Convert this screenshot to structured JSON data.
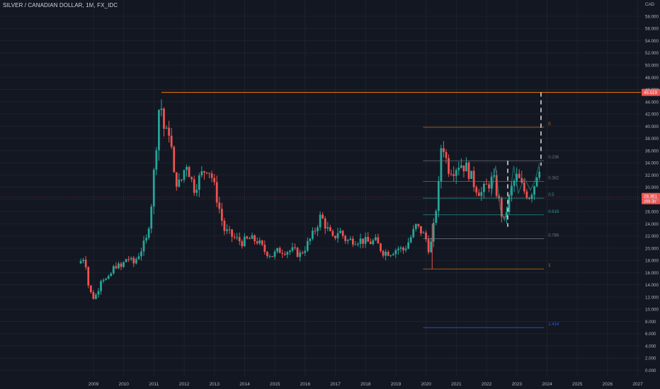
{
  "header": {
    "title": "SILVER / CANADIAN DOLLAR, 1M, FX_IDC"
  },
  "colors": {
    "background": "#131722",
    "up": "#26a69a",
    "down": "#ef5350",
    "grid": "#1e222d",
    "resistance_line": "#f57c00",
    "price_badge": "#ef5350",
    "fib_line": "#787b86",
    "fib_text": "#9598a1"
  },
  "chart_data": {
    "type": "candlestick",
    "currency_label": "CAD",
    "x_axis": {
      "years": [
        "2009",
        "2010",
        "2011",
        "2012",
        "2013",
        "2014",
        "2015",
        "2016",
        "2017",
        "2018",
        "2019",
        "2020",
        "2021",
        "2022",
        "2023",
        "2024",
        "2025",
        "2026",
        "2027"
      ],
      "range": [
        2008.5,
        2027.3
      ]
    },
    "y_axis": {
      "ticks": [
        "0.000",
        "2.000",
        "4.000",
        "6.000",
        "8.000",
        "10.000",
        "12.000",
        "14.000",
        "16.000",
        "18.000",
        "20.000",
        "22.000",
        "24.000",
        "26.000",
        "28.000",
        "30.000",
        "32.000",
        "34.000",
        "36.000",
        "38.000",
        "40.000",
        "42.000",
        "44.000",
        "46.000",
        "48.000",
        "50.000",
        "52.000",
        "54.000",
        "56.000",
        "58.000"
      ],
      "range": [
        -1.2,
        60
      ],
      "grid": true
    },
    "resistance": {
      "value": 45.519,
      "label": "45.519",
      "from_x": 2011.25
    },
    "current_price": {
      "value": 28.361,
      "label": "28.361",
      "countdown": "20d 3h"
    },
    "target_dashed_x": 2023.8,
    "target_dashed_range": [
      33.5,
      45.519
    ],
    "anchor_dashed_x": 2022.7,
    "anchor_dashed_range": [
      23.5,
      34.3
    ],
    "fib": {
      "x_start": 2019.9,
      "x_end": 2023.9,
      "high": 39.8,
      "low": 16.6,
      "levels": [
        {
          "label": "0",
          "value": 39.8,
          "color": "#f57c00"
        },
        {
          "label": "0.236",
          "value": 34.33,
          "color": "#787b86"
        },
        {
          "label": "0.382",
          "value": 30.94,
          "color": "#787b86"
        },
        {
          "label": "0.5",
          "value": 28.2,
          "color": "#26a69a"
        },
        {
          "label": "0.618",
          "value": 25.46,
          "color": "#26a69a"
        },
        {
          "label": "0.786",
          "value": 21.56,
          "color": "#787b86"
        },
        {
          "label": "1",
          "value": 16.6,
          "color": "#f57c00"
        },
        {
          "label": "1.414",
          "value": 6.99,
          "color": "#2962ff"
        }
      ]
    },
    "series_anchors": [
      [
        2008.6,
        17.5
      ],
      [
        2008.8,
        18.8
      ],
      [
        2008.9,
        14.2
      ],
      [
        2009.05,
        11.8
      ],
      [
        2009.2,
        12.5
      ],
      [
        2009.35,
        15.4
      ],
      [
        2009.55,
        14.6
      ],
      [
        2009.8,
        17.3
      ],
      [
        2010.0,
        16.8
      ],
      [
        2010.2,
        18.6
      ],
      [
        2010.4,
        17.4
      ],
      [
        2010.6,
        19.2
      ],
      [
        2010.85,
        21.5
      ],
      [
        2011.0,
        27.5
      ],
      [
        2011.15,
        36.5
      ],
      [
        2011.28,
        45.0
      ],
      [
        2011.45,
        38.2
      ],
      [
        2011.6,
        39.6
      ],
      [
        2011.75,
        31.5
      ],
      [
        2011.95,
        30.3
      ],
      [
        2012.15,
        34.2
      ],
      [
        2012.4,
        29.8
      ],
      [
        2012.65,
        32.0
      ],
      [
        2012.85,
        33.5
      ],
      [
        2013.0,
        31.6
      ],
      [
        2013.2,
        27.5
      ],
      [
        2013.4,
        23.0
      ],
      [
        2013.6,
        22.2
      ],
      [
        2013.8,
        21.5
      ],
      [
        2014.0,
        21.0
      ],
      [
        2014.25,
        21.5
      ],
      [
        2014.5,
        21.2
      ],
      [
        2014.75,
        19.5
      ],
      [
        2015.0,
        18.8
      ],
      [
        2015.2,
        19.6
      ],
      [
        2015.45,
        19.6
      ],
      [
        2015.7,
        19.6
      ],
      [
        2015.9,
        18.9
      ],
      [
        2016.1,
        20.2
      ],
      [
        2016.35,
        22.3
      ],
      [
        2016.6,
        25.3
      ],
      [
        2016.8,
        23.3
      ],
      [
        2017.0,
        21.4
      ],
      [
        2017.2,
        23.0
      ],
      [
        2017.45,
        21.2
      ],
      [
        2017.7,
        21.4
      ],
      [
        2017.95,
        21.3
      ],
      [
        2018.2,
        20.9
      ],
      [
        2018.4,
        21.2
      ],
      [
        2018.65,
        19.4
      ],
      [
        2018.9,
        19.3
      ],
      [
        2019.15,
        20.0
      ],
      [
        2019.35,
        19.7
      ],
      [
        2019.55,
        21.5
      ],
      [
        2019.75,
        23.6
      ],
      [
        2019.95,
        22.6
      ],
      [
        2020.1,
        21.3
      ],
      [
        2020.2,
        19.3
      ],
      [
        2020.35,
        24.0
      ],
      [
        2020.5,
        30.2
      ],
      [
        2020.6,
        38.2
      ],
      [
        2020.8,
        33.2
      ],
      [
        2021.0,
        33.0
      ],
      [
        2021.2,
        34.0
      ],
      [
        2021.45,
        33.0
      ],
      [
        2021.7,
        30.2
      ],
      [
        2021.9,
        29.0
      ],
      [
        2022.1,
        30.2
      ],
      [
        2022.3,
        31.5
      ],
      [
        2022.5,
        27.5
      ],
      [
        2022.65,
        24.0
      ],
      [
        2022.8,
        27.5
      ],
      [
        2022.95,
        30.5
      ],
      [
        2023.1,
        31.8
      ],
      [
        2023.3,
        29.5
      ],
      [
        2023.5,
        28.6
      ],
      [
        2023.65,
        30.2
      ],
      [
        2023.8,
        33.5
      ]
    ]
  }
}
